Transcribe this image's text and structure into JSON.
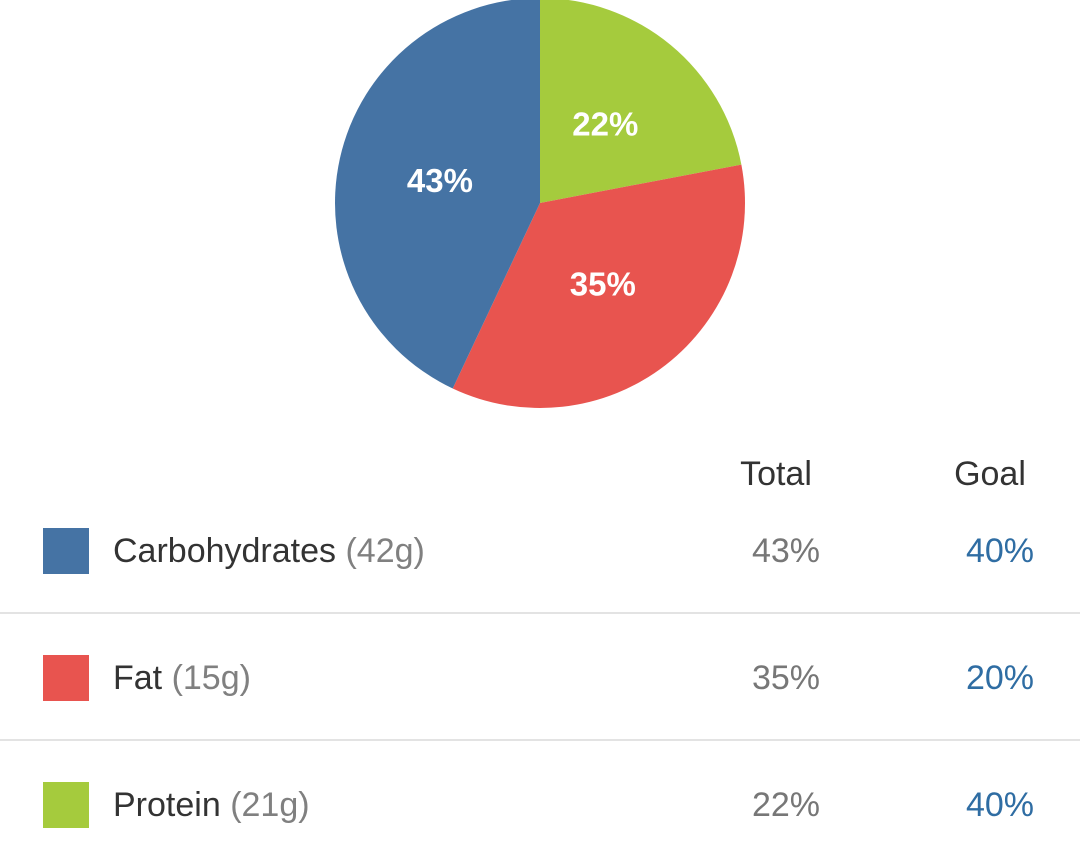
{
  "chart_data": {
    "type": "pie",
    "slices": [
      {
        "label": "Carbohydrates",
        "value": 43,
        "display": "43%",
        "color": "#4573a4"
      },
      {
        "label": "Fat",
        "value": 35,
        "display": "35%",
        "color": "#e8544f"
      },
      {
        "label": "Protein",
        "value": 22,
        "display": "22%",
        "color": "#a5cb3d"
      }
    ]
  },
  "table": {
    "headers": {
      "total": "Total",
      "goal": "Goal"
    },
    "rows": [
      {
        "name": "Carbohydrates",
        "amount": "(42g)",
        "total": "43%",
        "goal": "40%",
        "color": "#4573a4"
      },
      {
        "name": "Fat",
        "amount": "(15g)",
        "total": "35%",
        "goal": "20%",
        "color": "#e8544f"
      },
      {
        "name": "Protein",
        "amount": "(21g)",
        "total": "22%",
        "goal": "40%",
        "color": "#a5cb3d"
      }
    ]
  }
}
